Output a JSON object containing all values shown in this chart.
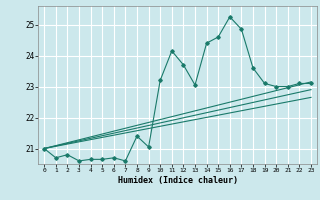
{
  "xlabel": "Humidex (Indice chaleur)",
  "bg_color": "#cce8ec",
  "grid_color": "#ffffff",
  "line_color": "#1a7a6a",
  "xlim": [
    -0.5,
    23.5
  ],
  "ylim": [
    20.5,
    25.6
  ],
  "yticks": [
    21,
    22,
    23,
    24,
    25
  ],
  "xticks": [
    0,
    1,
    2,
    3,
    4,
    5,
    6,
    7,
    8,
    9,
    10,
    11,
    12,
    13,
    14,
    15,
    16,
    17,
    18,
    19,
    20,
    21,
    22,
    23
  ],
  "series1_x": [
    0,
    1,
    2,
    3,
    4,
    5,
    6,
    7,
    8,
    9,
    10,
    11,
    12,
    13,
    14,
    15,
    16,
    17,
    18,
    19,
    20,
    21,
    22,
    23
  ],
  "series1_y": [
    21.0,
    20.7,
    20.8,
    20.6,
    20.65,
    20.65,
    20.7,
    20.6,
    21.4,
    21.05,
    23.2,
    24.15,
    23.7,
    23.05,
    24.4,
    24.6,
    25.25,
    24.85,
    23.6,
    23.1,
    23.0,
    23.0,
    23.1,
    23.1
  ],
  "series2_x": [
    0,
    23
  ],
  "series2_y": [
    21.0,
    23.15
  ],
  "series3_x": [
    0,
    23
  ],
  "series3_y": [
    21.0,
    22.9
  ],
  "series4_x": [
    0,
    23
  ],
  "series4_y": [
    21.0,
    22.65
  ]
}
